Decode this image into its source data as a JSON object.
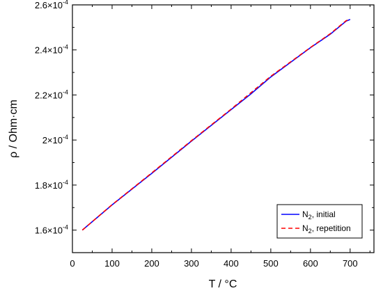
{
  "chart_data": {
    "type": "line",
    "title": "",
    "xlabel": "T / °C",
    "ylabel": "ρ / Ohm·cm",
    "xlim": [
      0,
      760
    ],
    "ylim": [
      0.00015,
      0.00026
    ],
    "x_ticks": [
      0,
      100,
      200,
      300,
      400,
      500,
      600,
      700
    ],
    "x_tick_labels": [
      "0",
      "100",
      "200",
      "300",
      "400",
      "500",
      "600",
      "700"
    ],
    "y_ticks": [
      0.00016,
      0.00018,
      0.0002,
      0.00022,
      0.00024,
      0.00026
    ],
    "y_tick_labels": [
      {
        "mantissa": "1.6",
        "exponent": "-4"
      },
      {
        "mantissa": "1.8",
        "exponent": "-4"
      },
      {
        "mantissa": "2",
        "exponent": "-4"
      },
      {
        "mantissa": "2.2",
        "exponent": "-4"
      },
      {
        "mantissa": "2.4",
        "exponent": "-4"
      },
      {
        "mantissa": "2.6",
        "exponent": "-4"
      }
    ],
    "grid": false,
    "legend_position": "bottom-right",
    "series": [
      {
        "name_main": "N",
        "name_sub": "2",
        "name_rest": ", initial",
        "color": "#0000ff",
        "dash": "solid",
        "x": [
          25,
          100,
          200,
          300,
          400,
          450,
          500,
          550,
          600,
          650,
          690,
          700
        ],
        "y": [
          0.00016,
          0.0001712,
          0.0001852,
          0.0001995,
          0.0002135,
          0.0002205,
          0.000228,
          0.0002345,
          0.000241,
          0.000247,
          0.0002528,
          0.0002535
        ]
      },
      {
        "name_main": "N",
        "name_sub": "2",
        "name_rest": ", repetition",
        "color": "#ff0000",
        "dash": "dashed",
        "x": [
          25,
          100,
          200,
          300,
          400,
          450,
          500,
          550,
          600,
          650,
          690,
          700
        ],
        "y": [
          0.00016,
          0.0001713,
          0.0001854,
          0.0001997,
          0.0002137,
          0.000221,
          0.0002283,
          0.0002347,
          0.0002411,
          0.0002472,
          0.000253,
          0.0002536
        ]
      }
    ]
  }
}
